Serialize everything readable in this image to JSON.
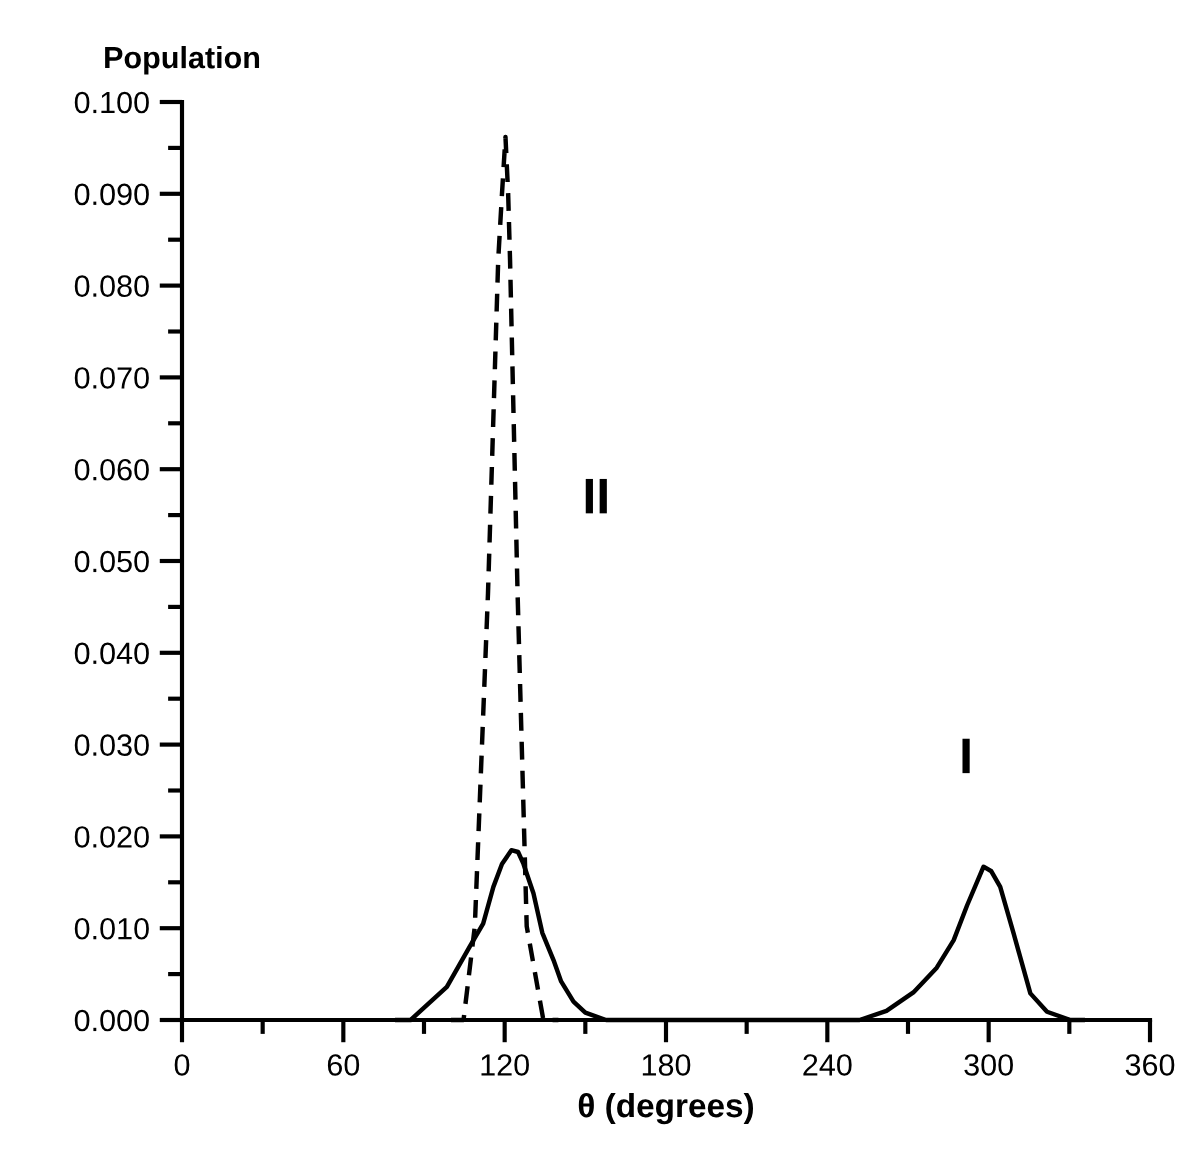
{
  "chart_data": {
    "type": "line",
    "ylabel": "Population",
    "xlabel": "θ (degrees)",
    "series": [
      {
        "color": "#000000",
        "line_style": "solid",
        "x": [
          80,
          85,
          98.5,
          107,
          112,
          115.8,
          119,
          122.5,
          125,
          127,
          130.7,
          134,
          138.2,
          141,
          145.6,
          150,
          157.7,
          200,
          252,
          262,
          272,
          280.7,
          287,
          292,
          298.1,
          301,
          304.3,
          309.3,
          315.5,
          321.7,
          330.4,
          335
        ],
        "values": [
          0,
          0,
          0.0036,
          0.008,
          0.0105,
          0.0145,
          0.017,
          0.0185,
          0.0183,
          0.017,
          0.0138,
          0.0095,
          0.0065,
          0.0042,
          0.002,
          0.0008,
          0,
          0,
          0,
          0.001,
          0.003,
          0.0057,
          0.0087,
          0.0125,
          0.0167,
          0.0162,
          0.0145,
          0.0094,
          0.0029,
          0.0009,
          0,
          0
        ]
      },
      {
        "color": "#000000",
        "line_style": "dashed",
        "x": [
          100,
          104.7,
          108.9,
          113.8,
          117.6,
          119,
          120.3,
          121.3,
          122,
          124.8,
          128.2,
          134.4,
          140
        ],
        "values": [
          0,
          0,
          0.0102,
          0.0465,
          0.0828,
          0.09,
          0.0962,
          0.09,
          0.0828,
          0.0465,
          0.0102,
          0,
          0
        ]
      }
    ],
    "xlim": [
      0,
      360
    ],
    "ylim": [
      0,
      0.1
    ],
    "xticks": [
      0,
      {
        "value": 30,
        "label": null
      },
      60,
      {
        "value": 90,
        "label": null
      },
      120,
      {
        "value": 150,
        "label": null
      },
      180,
      {
        "value": 210,
        "label": null
      },
      240,
      {
        "value": 270,
        "label": null
      },
      300,
      {
        "value": 330,
        "label": null
      },
      360
    ],
    "yticks": [
      {
        "value": 0,
        "label": "0.000"
      },
      {
        "value": 0.005,
        "label": null
      },
      {
        "value": 0.01,
        "label": "0.010"
      },
      {
        "value": 0.015,
        "label": null
      },
      {
        "value": 0.02,
        "label": "0.020"
      },
      {
        "value": 0.025,
        "label": null
      },
      {
        "value": 0.03,
        "label": "0.030"
      },
      {
        "value": 0.035,
        "label": null
      },
      {
        "value": 0.04,
        "label": "0.040"
      },
      {
        "value": 0.045,
        "label": null
      },
      {
        "value": 0.05,
        "label": "0.050"
      },
      {
        "value": 0.055,
        "label": null
      },
      {
        "value": 0.06,
        "label": "0.060"
      },
      {
        "value": 0.065,
        "label": null
      },
      {
        "value": 0.07,
        "label": "0.070"
      },
      {
        "value": 0.075,
        "label": null
      },
      {
        "value": 0.08,
        "label": "0.080"
      },
      {
        "value": 0.085,
        "label": null
      },
      {
        "value": 0.09,
        "label": "0.090"
      },
      {
        "value": 0.095,
        "label": null
      },
      {
        "value": 0.1,
        "label": "0.100"
      }
    ],
    "annotations": [
      "II",
      "I"
    ],
    "grid": false,
    "legend": false,
    "marker": "none"
  }
}
